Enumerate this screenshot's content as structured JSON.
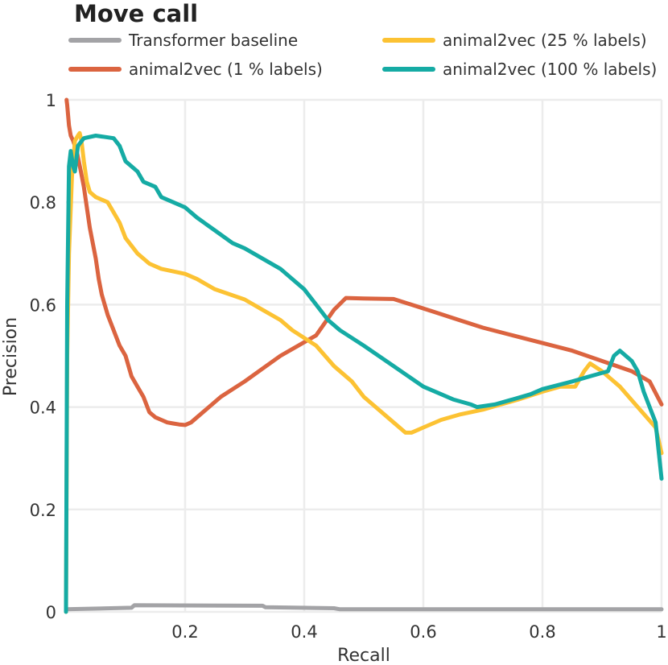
{
  "chart_data": {
    "type": "line",
    "title": "Move call",
    "xlabel": "Recall",
    "ylabel": "Precision",
    "xlim": [
      0,
      1
    ],
    "ylim": [
      0,
      1
    ],
    "grid": true,
    "legend_position": "top",
    "x_ticks": [
      0.2,
      0.4,
      0.6,
      0.8,
      1
    ],
    "x_tick_labels": [
      "0.2",
      "0.4",
      "0.6",
      "0.8",
      "1"
    ],
    "y_ticks": [
      0,
      0.2,
      0.4,
      0.6,
      0.8,
      1
    ],
    "y_tick_labels": [
      "0",
      "0.2",
      "0.4",
      "0.6",
      "0.8",
      "1"
    ],
    "series": [
      {
        "name": "Transformer baseline",
        "color": "#a3a3a6",
        "x": [
          0,
          0.11,
          0.115,
          0.33,
          0.335,
          0.45,
          0.46,
          1
        ],
        "y": [
          0.005,
          0.008,
          0.013,
          0.012,
          0.009,
          0.007,
          0.005,
          0.005
        ]
      },
      {
        "name": "animal2vec (1 % labels)",
        "color": "#db6440",
        "x": [
          0.001,
          0.002,
          0.005,
          0.008,
          0.012,
          0.018,
          0.025,
          0.03,
          0.035,
          0.04,
          0.045,
          0.05,
          0.055,
          0.06,
          0.065,
          0.07,
          0.08,
          0.09,
          0.1,
          0.11,
          0.12,
          0.13,
          0.14,
          0.15,
          0.16,
          0.17,
          0.18,
          0.19,
          0.2,
          0.21,
          0.22,
          0.24,
          0.26,
          0.28,
          0.3,
          0.33,
          0.36,
          0.39,
          0.42,
          0.45,
          0.47,
          0.5,
          0.55,
          0.58,
          0.62,
          0.66,
          0.7,
          0.75,
          0.8,
          0.85,
          0.9,
          0.95,
          0.98,
          1.0
        ],
        "y": [
          1.0,
          0.99,
          0.95,
          0.93,
          0.92,
          0.9,
          0.86,
          0.83,
          0.79,
          0.75,
          0.72,
          0.69,
          0.65,
          0.62,
          0.6,
          0.58,
          0.55,
          0.52,
          0.5,
          0.46,
          0.44,
          0.42,
          0.39,
          0.38,
          0.375,
          0.37,
          0.368,
          0.366,
          0.365,
          0.37,
          0.38,
          0.4,
          0.42,
          0.435,
          0.45,
          0.475,
          0.5,
          0.52,
          0.54,
          0.59,
          0.613,
          0.612,
          0.611,
          0.6,
          0.585,
          0.57,
          0.555,
          0.54,
          0.525,
          0.51,
          0.49,
          0.47,
          0.45,
          0.405
        ]
      },
      {
        "name": "animal2vec (25 % labels)",
        "color": "#fcc233",
        "x": [
          0.0,
          0.002,
          0.005,
          0.01,
          0.015,
          0.02,
          0.023,
          0.026,
          0.03,
          0.035,
          0.04,
          0.05,
          0.07,
          0.08,
          0.09,
          0.1,
          0.12,
          0.14,
          0.16,
          0.18,
          0.2,
          0.22,
          0.25,
          0.3,
          0.33,
          0.36,
          0.38,
          0.42,
          0.45,
          0.48,
          0.5,
          0.52,
          0.55,
          0.57,
          0.58,
          0.6,
          0.63,
          0.66,
          0.7,
          0.73,
          0.76,
          0.8,
          0.83,
          0.855,
          0.87,
          0.88,
          0.9,
          0.93,
          0.96,
          0.99,
          1.0
        ],
        "y": [
          0.0,
          0.5,
          0.7,
          0.85,
          0.92,
          0.93,
          0.935,
          0.92,
          0.88,
          0.84,
          0.82,
          0.81,
          0.8,
          0.78,
          0.76,
          0.73,
          0.7,
          0.68,
          0.67,
          0.665,
          0.66,
          0.65,
          0.63,
          0.61,
          0.59,
          0.57,
          0.55,
          0.52,
          0.48,
          0.45,
          0.42,
          0.4,
          0.37,
          0.35,
          0.35,
          0.36,
          0.375,
          0.385,
          0.395,
          0.405,
          0.415,
          0.43,
          0.44,
          0.44,
          0.47,
          0.485,
          0.47,
          0.44,
          0.4,
          0.36,
          0.31
        ]
      },
      {
        "name": "animal2vec (100 % labels)",
        "color": "#15aba4",
        "x": [
          0.0,
          0.002,
          0.005,
          0.008,
          0.012,
          0.015,
          0.02,
          0.03,
          0.05,
          0.08,
          0.09,
          0.1,
          0.12,
          0.13,
          0.15,
          0.16,
          0.18,
          0.2,
          0.22,
          0.25,
          0.28,
          0.3,
          0.33,
          0.36,
          0.38,
          0.4,
          0.42,
          0.44,
          0.46,
          0.5,
          0.55,
          0.6,
          0.63,
          0.65,
          0.68,
          0.69,
          0.72,
          0.75,
          0.78,
          0.8,
          0.85,
          0.88,
          0.91,
          0.92,
          0.93,
          0.95,
          0.96,
          0.97,
          0.98,
          0.99,
          1.0
        ],
        "y": [
          0.0,
          0.6,
          0.87,
          0.9,
          0.87,
          0.86,
          0.91,
          0.925,
          0.93,
          0.925,
          0.91,
          0.88,
          0.86,
          0.84,
          0.83,
          0.81,
          0.8,
          0.79,
          0.77,
          0.745,
          0.72,
          0.71,
          0.69,
          0.67,
          0.65,
          0.63,
          0.6,
          0.57,
          0.55,
          0.52,
          0.48,
          0.44,
          0.425,
          0.415,
          0.405,
          0.4,
          0.405,
          0.415,
          0.425,
          0.435,
          0.45,
          0.46,
          0.47,
          0.5,
          0.51,
          0.49,
          0.47,
          0.43,
          0.4,
          0.37,
          0.26
        ]
      }
    ]
  }
}
